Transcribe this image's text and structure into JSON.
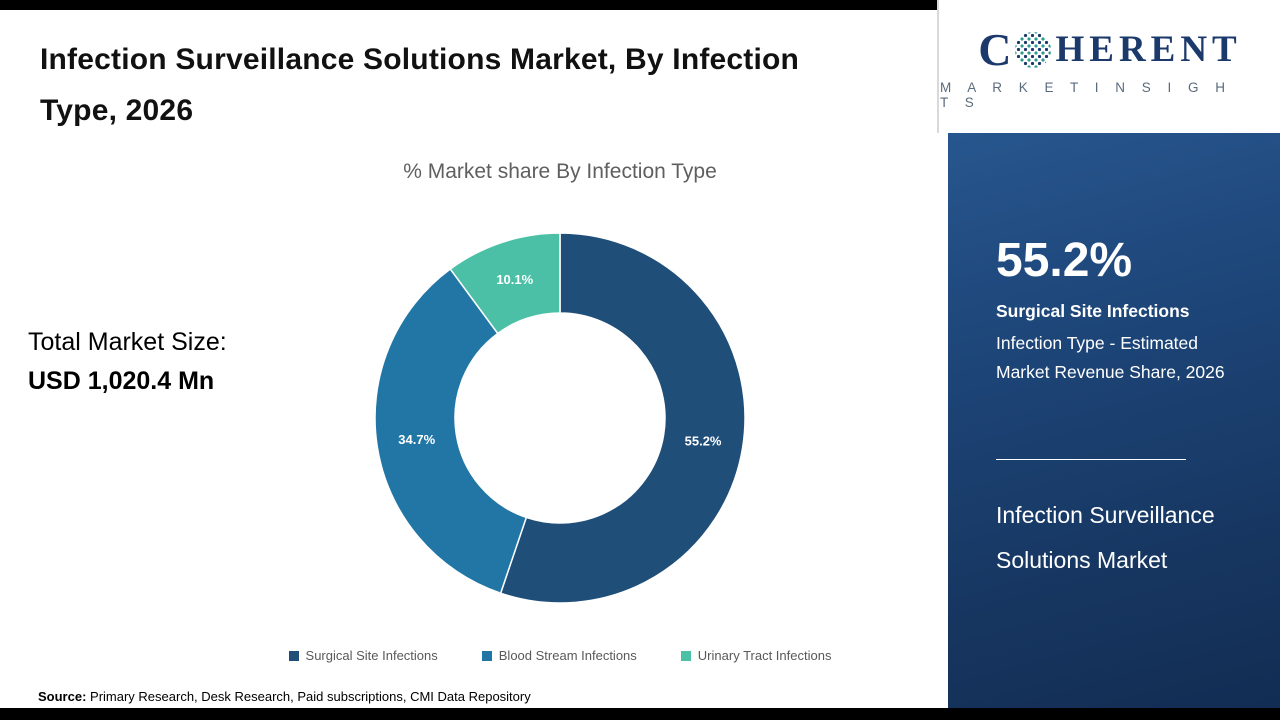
{
  "header": {
    "title": "Infection Surveillance Solutions Market, By Infection Type, 2026"
  },
  "chart": {
    "subtitle": "% Market share By Infection Type",
    "total_label": "Total Market Size:",
    "total_value": "USD 1,020.4 Mn"
  },
  "chart_data": {
    "type": "pie",
    "donut": true,
    "title": "% Market share By Infection Type",
    "categories": [
      "Surgical Site Infections",
      "Blood Stream Infections",
      "Urinary Tract Infections"
    ],
    "values": [
      55.2,
      34.7,
      10.1
    ],
    "unit": "%",
    "colors": [
      "#1f4e79",
      "#2176a5",
      "#4cc0a6"
    ],
    "legend_position": "bottom",
    "start_angle_deg": 0,
    "direction": "clockwise"
  },
  "sidebar": {
    "logo": {
      "brand_c": "C",
      "brand_rest": "HERENT",
      "tagline": "M A R K E T   I N S I G H T S"
    },
    "highlight_value": "55.2%",
    "highlight_bold": "Surgical Site Infections",
    "highlight_text": "Infection Type - Estimated Market Revenue Share, 2026",
    "market_name": "Infection Surveillance Solutions Market"
  },
  "footer": {
    "source_label": "Source:",
    "source_text": " Primary Research, Desk Research, Paid subscriptions, CMI Data Repository"
  }
}
